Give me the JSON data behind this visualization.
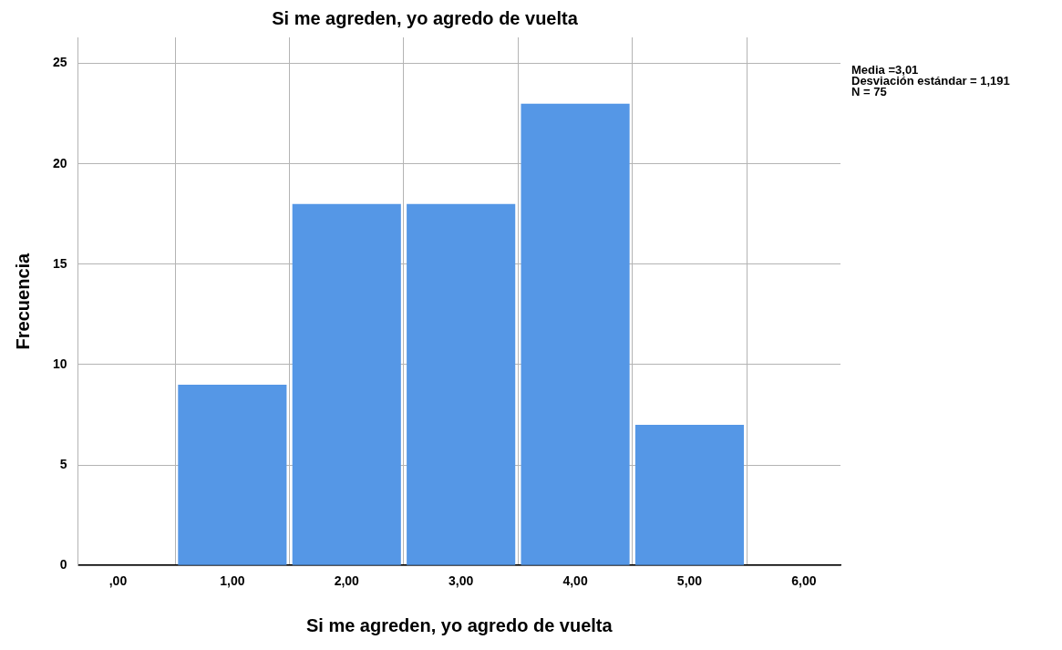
{
  "chart_data": {
    "type": "histogram",
    "title": "Si me agreden, yo agredo de vuelta",
    "xlabel": "Si me agreden, yo agredo de vuelta",
    "ylabel": "Frecuencia",
    "bins": [
      0.5,
      1.5,
      2.5,
      3.5,
      4.5,
      5.5
    ],
    "values": [
      9,
      18,
      18,
      23,
      7
    ],
    "color": "#5597e6",
    "xlim": [
      -0.35,
      6.32
    ],
    "xticks": [
      {
        "value": 0,
        "label": ",00"
      },
      {
        "value": 1,
        "label": "1,00"
      },
      {
        "value": 2,
        "label": "2,00"
      },
      {
        "value": 3,
        "label": "3,00"
      },
      {
        "value": 4,
        "label": "4,00"
      },
      {
        "value": 5,
        "label": "5,00"
      },
      {
        "value": 6,
        "label": "6,00"
      }
    ],
    "ylim": [
      0,
      26.3
    ],
    "yticks": [
      0,
      5,
      10,
      15,
      20,
      25
    ],
    "grid": true,
    "legend": false,
    "annotations": [
      "Media =3,01",
      "Desviación estándar = 1,191",
      "N = 75"
    ]
  }
}
